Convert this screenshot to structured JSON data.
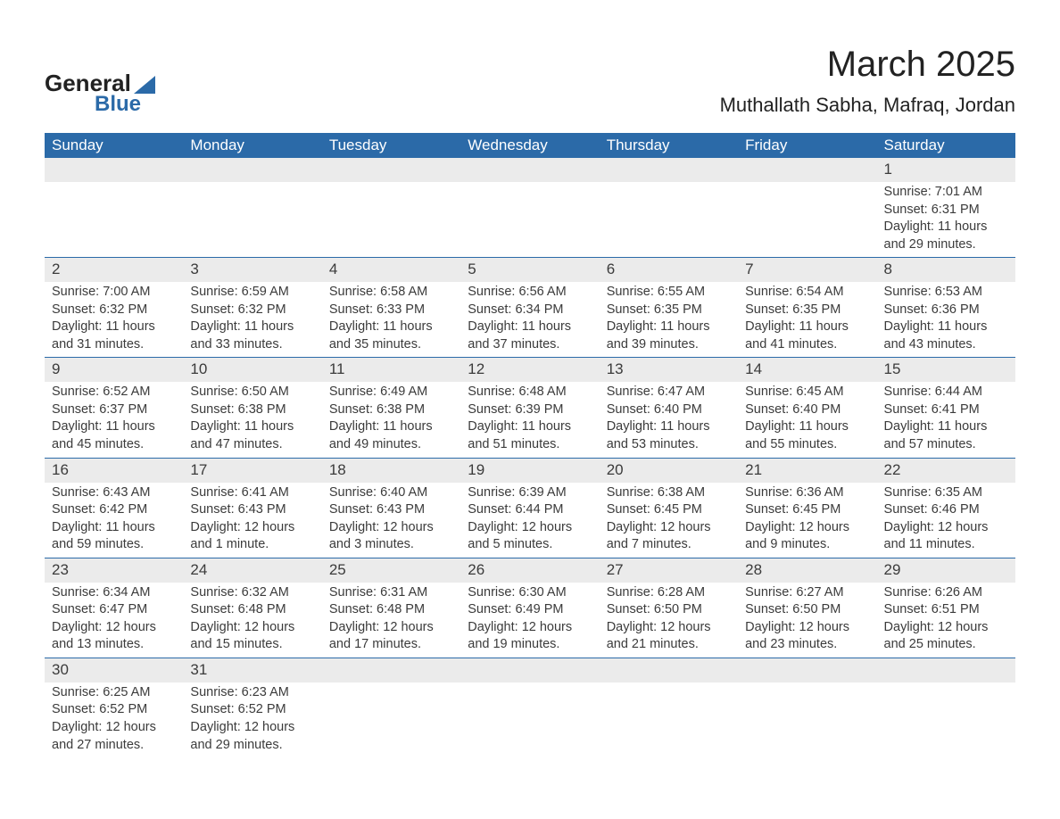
{
  "brand": {
    "line1": "General",
    "line2": "Blue"
  },
  "title": "March 2025",
  "location": "Muthallath Sabha, Mafraq, Jordan",
  "colors": {
    "header_bg": "#2b6aa8",
    "header_text": "#ffffff",
    "daynum_bg": "#ebebeb",
    "body_text": "#3b3b3b",
    "row_border": "#2b6aa8"
  },
  "typography": {
    "title_fontsize": 40,
    "location_fontsize": 22,
    "dayheader_fontsize": 17,
    "cell_fontsize": 14.5
  },
  "day_headers": [
    "Sunday",
    "Monday",
    "Tuesday",
    "Wednesday",
    "Thursday",
    "Friday",
    "Saturday"
  ],
  "weeks": [
    [
      null,
      null,
      null,
      null,
      null,
      null,
      {
        "n": "1",
        "sunrise": "7:01 AM",
        "sunset": "6:31 PM",
        "dl1": "11 hours",
        "dl2": "and 29 minutes."
      }
    ],
    [
      {
        "n": "2",
        "sunrise": "7:00 AM",
        "sunset": "6:32 PM",
        "dl1": "11 hours",
        "dl2": "and 31 minutes."
      },
      {
        "n": "3",
        "sunrise": "6:59 AM",
        "sunset": "6:32 PM",
        "dl1": "11 hours",
        "dl2": "and 33 minutes."
      },
      {
        "n": "4",
        "sunrise": "6:58 AM",
        "sunset": "6:33 PM",
        "dl1": "11 hours",
        "dl2": "and 35 minutes."
      },
      {
        "n": "5",
        "sunrise": "6:56 AM",
        "sunset": "6:34 PM",
        "dl1": "11 hours",
        "dl2": "and 37 minutes."
      },
      {
        "n": "6",
        "sunrise": "6:55 AM",
        "sunset": "6:35 PM",
        "dl1": "11 hours",
        "dl2": "and 39 minutes."
      },
      {
        "n": "7",
        "sunrise": "6:54 AM",
        "sunset": "6:35 PM",
        "dl1": "11 hours",
        "dl2": "and 41 minutes."
      },
      {
        "n": "8",
        "sunrise": "6:53 AM",
        "sunset": "6:36 PM",
        "dl1": "11 hours",
        "dl2": "and 43 minutes."
      }
    ],
    [
      {
        "n": "9",
        "sunrise": "6:52 AM",
        "sunset": "6:37 PM",
        "dl1": "11 hours",
        "dl2": "and 45 minutes."
      },
      {
        "n": "10",
        "sunrise": "6:50 AM",
        "sunset": "6:38 PM",
        "dl1": "11 hours",
        "dl2": "and 47 minutes."
      },
      {
        "n": "11",
        "sunrise": "6:49 AM",
        "sunset": "6:38 PM",
        "dl1": "11 hours",
        "dl2": "and 49 minutes."
      },
      {
        "n": "12",
        "sunrise": "6:48 AM",
        "sunset": "6:39 PM",
        "dl1": "11 hours",
        "dl2": "and 51 minutes."
      },
      {
        "n": "13",
        "sunrise": "6:47 AM",
        "sunset": "6:40 PM",
        "dl1": "11 hours",
        "dl2": "and 53 minutes."
      },
      {
        "n": "14",
        "sunrise": "6:45 AM",
        "sunset": "6:40 PM",
        "dl1": "11 hours",
        "dl2": "and 55 minutes."
      },
      {
        "n": "15",
        "sunrise": "6:44 AM",
        "sunset": "6:41 PM",
        "dl1": "11 hours",
        "dl2": "and 57 minutes."
      }
    ],
    [
      {
        "n": "16",
        "sunrise": "6:43 AM",
        "sunset": "6:42 PM",
        "dl1": "11 hours",
        "dl2": "and 59 minutes."
      },
      {
        "n": "17",
        "sunrise": "6:41 AM",
        "sunset": "6:43 PM",
        "dl1": "12 hours",
        "dl2": "and 1 minute."
      },
      {
        "n": "18",
        "sunrise": "6:40 AM",
        "sunset": "6:43 PM",
        "dl1": "12 hours",
        "dl2": "and 3 minutes."
      },
      {
        "n": "19",
        "sunrise": "6:39 AM",
        "sunset": "6:44 PM",
        "dl1": "12 hours",
        "dl2": "and 5 minutes."
      },
      {
        "n": "20",
        "sunrise": "6:38 AM",
        "sunset": "6:45 PM",
        "dl1": "12 hours",
        "dl2": "and 7 minutes."
      },
      {
        "n": "21",
        "sunrise": "6:36 AM",
        "sunset": "6:45 PM",
        "dl1": "12 hours",
        "dl2": "and 9 minutes."
      },
      {
        "n": "22",
        "sunrise": "6:35 AM",
        "sunset": "6:46 PM",
        "dl1": "12 hours",
        "dl2": "and 11 minutes."
      }
    ],
    [
      {
        "n": "23",
        "sunrise": "6:34 AM",
        "sunset": "6:47 PM",
        "dl1": "12 hours",
        "dl2": "and 13 minutes."
      },
      {
        "n": "24",
        "sunrise": "6:32 AM",
        "sunset": "6:48 PM",
        "dl1": "12 hours",
        "dl2": "and 15 minutes."
      },
      {
        "n": "25",
        "sunrise": "6:31 AM",
        "sunset": "6:48 PM",
        "dl1": "12 hours",
        "dl2": "and 17 minutes."
      },
      {
        "n": "26",
        "sunrise": "6:30 AM",
        "sunset": "6:49 PM",
        "dl1": "12 hours",
        "dl2": "and 19 minutes."
      },
      {
        "n": "27",
        "sunrise": "6:28 AM",
        "sunset": "6:50 PM",
        "dl1": "12 hours",
        "dl2": "and 21 minutes."
      },
      {
        "n": "28",
        "sunrise": "6:27 AM",
        "sunset": "6:50 PM",
        "dl1": "12 hours",
        "dl2": "and 23 minutes."
      },
      {
        "n": "29",
        "sunrise": "6:26 AM",
        "sunset": "6:51 PM",
        "dl1": "12 hours",
        "dl2": "and 25 minutes."
      }
    ],
    [
      {
        "n": "30",
        "sunrise": "6:25 AM",
        "sunset": "6:52 PM",
        "dl1": "12 hours",
        "dl2": "and 27 minutes."
      },
      {
        "n": "31",
        "sunrise": "6:23 AM",
        "sunset": "6:52 PM",
        "dl1": "12 hours",
        "dl2": "and 29 minutes."
      },
      null,
      null,
      null,
      null,
      null
    ]
  ],
  "labels": {
    "sunrise_prefix": "Sunrise: ",
    "sunset_prefix": "Sunset: ",
    "daylight_prefix": "Daylight: "
  }
}
